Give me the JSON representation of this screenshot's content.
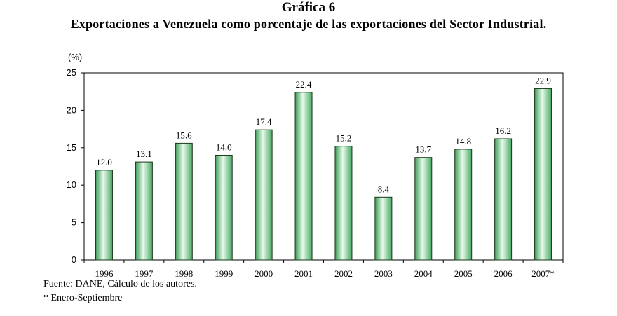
{
  "chart_number": "Gráfica 6",
  "title": "Exportaciones a Venezuela como porcentaje de las exportaciones del Sector Industrial.",
  "source": "Fuente: DANE, Cálculo de los autores.",
  "footnote": "* Enero-Septiembre",
  "chart_data": {
    "type": "bar",
    "title": "Exportaciones a Venezuela como porcentaje de las exportaciones del Sector Industrial.",
    "ylabel": "(%)",
    "xlabel": "",
    "categories": [
      "1996",
      "1997",
      "1998",
      "1999",
      "2000",
      "2001",
      "2002",
      "2003",
      "2004",
      "2005",
      "2006",
      "2007*"
    ],
    "values": [
      12.0,
      13.1,
      15.6,
      14.0,
      17.4,
      22.4,
      15.2,
      8.4,
      13.7,
      14.8,
      16.2,
      22.9
    ],
    "data_labels": [
      "12.0",
      "13.1",
      "15.6",
      "14.0",
      "17.4",
      "22.4",
      "15.2",
      "8.4",
      "13.7",
      "14.8",
      "16.2",
      "22.9"
    ],
    "ylim": [
      0,
      25
    ],
    "yticks": [
      0,
      5,
      10,
      15,
      20,
      25
    ],
    "grid": false,
    "legend": "none",
    "bar_color": "#8fe0a6",
    "bar_edge_color": "#1a3a1a"
  }
}
